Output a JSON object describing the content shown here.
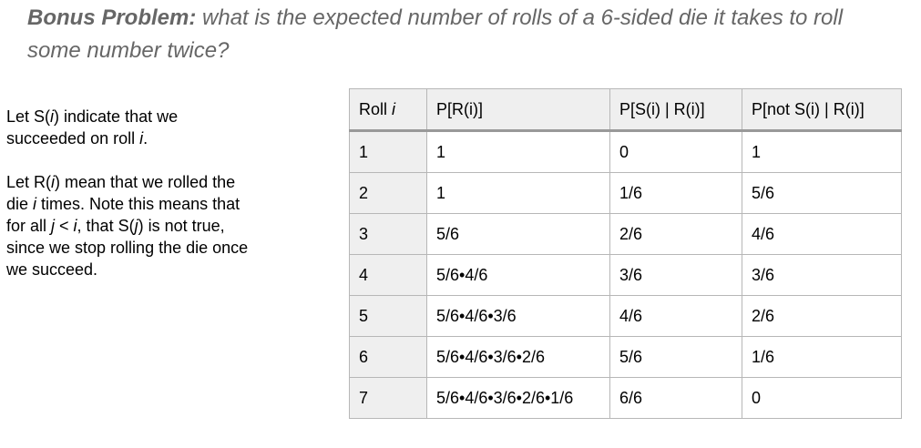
{
  "title": {
    "bold": "Bonus Problem:",
    "rest": " what is the expected number of rolls of a 6-sided die it takes to roll some number twice?"
  },
  "notes": {
    "p1": {
      "a": "Let S(",
      "i1": "i",
      "b": ") indicate that we succeeded on roll ",
      "i2": "i",
      "c": "."
    },
    "p2": {
      "a": "Let R(",
      "i1": "i",
      "b": ") mean that we rolled the die ",
      "i2": "i",
      "c": " times. Note this means that for all ",
      "i3": "j",
      "d": " < ",
      "i4": "i",
      "e": ", that S(",
      "i5": "j",
      "f": ") is not true, since we stop rolling the die once we succeed."
    }
  },
  "table": {
    "headers": {
      "h1_text": "Roll ",
      "h1_var": "i",
      "h2": "P[R(i)]",
      "h3": "P[S(i) | R(i)]",
      "h4": "P[not S(i) | R(i)]"
    },
    "rows": [
      {
        "roll": "1",
        "pr": "1",
        "ps": "0",
        "pns": "1"
      },
      {
        "roll": "2",
        "pr": "1",
        "ps": "1/6",
        "pns": "5/6"
      },
      {
        "roll": "3",
        "pr": "5/6",
        "ps": "2/6",
        "pns": "4/6"
      },
      {
        "roll": "4",
        "pr": "5/6•4/6",
        "ps": "3/6",
        "pns": "3/6"
      },
      {
        "roll": "5",
        "pr": "5/6•4/6•3/6",
        "ps": "4/6",
        "pns": "2/6"
      },
      {
        "roll": "6",
        "pr": "5/6•4/6•3/6•2/6",
        "ps": "5/6",
        "pns": "1/6"
      },
      {
        "roll": "7",
        "pr": "5/6•4/6•3/6•2/6•1/6",
        "ps": "6/6",
        "pns": "0"
      }
    ]
  }
}
